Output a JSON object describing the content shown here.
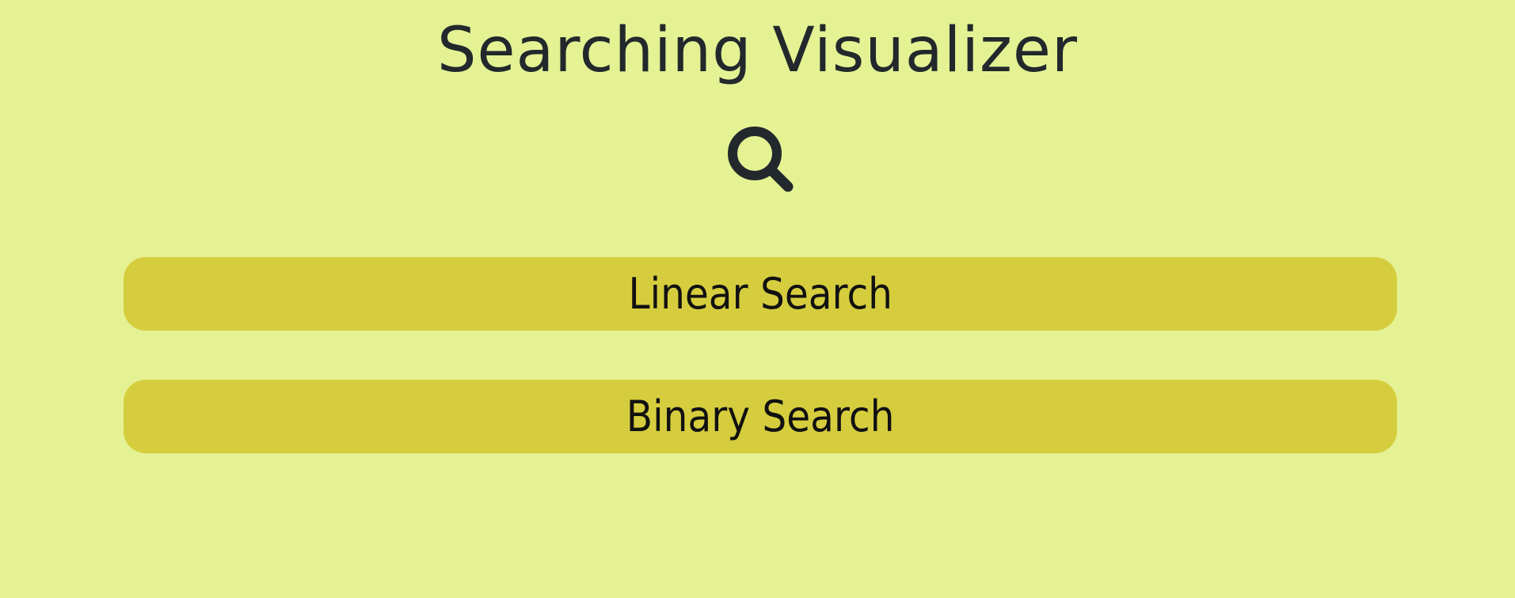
{
  "header": {
    "title": "Searching Visualizer",
    "icon": "search-icon"
  },
  "menu": {
    "buttons": [
      {
        "label": "Linear Search"
      },
      {
        "label": "Binary Search"
      }
    ]
  },
  "colors": {
    "background": "#e4f294",
    "button": "#d6cd3e",
    "text": "#22282b"
  }
}
